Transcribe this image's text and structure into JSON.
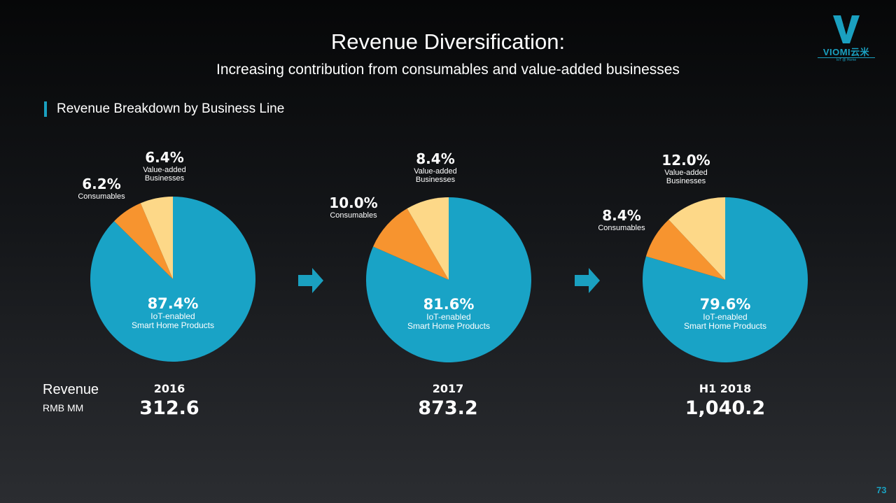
{
  "slide": {
    "title": "Revenue Diversification:",
    "subtitle": "Increasing contribution from consumables and value-added businesses",
    "section_title": "Revenue Breakdown by Business Line",
    "revenue_label": "Revenue",
    "revenue_unit": "RMB MM",
    "page_number": "73"
  },
  "logo": {
    "wordmark": "VIOMI云米",
    "tagline": "IoT @ Home"
  },
  "colors": {
    "accent": "#1aa0c0",
    "iot": "#19a3c6",
    "consumables": "#f7942f",
    "value_added": "#fdd888"
  },
  "chart_data": [
    {
      "type": "pie",
      "period": "2016",
      "revenue": "312.6",
      "slices": [
        {
          "name": "IoT-enabled Smart Home Products",
          "value": 87.4,
          "label": "87.4%",
          "lines": [
            "IoT-enabled",
            "Smart Home Products"
          ]
        },
        {
          "name": "Consumables",
          "value": 6.2,
          "label": "6.2%",
          "lines": [
            "Consumables"
          ]
        },
        {
          "name": "Value-added Businesses",
          "value": 6.4,
          "label": "6.4%",
          "lines": [
            "Value-added",
            "Businesses"
          ]
        }
      ]
    },
    {
      "type": "pie",
      "period": "2017",
      "revenue": "873.2",
      "slices": [
        {
          "name": "IoT-enabled Smart Home Products",
          "value": 81.6,
          "label": "81.6%",
          "lines": [
            "IoT-enabled",
            "Smart Home Products"
          ]
        },
        {
          "name": "Consumables",
          "value": 10.0,
          "label": "10.0%",
          "lines": [
            "Consumables"
          ]
        },
        {
          "name": "Value-added Businesses",
          "value": 8.4,
          "label": "8.4%",
          "lines": [
            "Value-added",
            "Businesses"
          ]
        }
      ]
    },
    {
      "type": "pie",
      "period": "H1 2018",
      "revenue": "1,040.2",
      "slices": [
        {
          "name": "IoT-enabled Smart Home Products",
          "value": 79.6,
          "label": "79.6%",
          "lines": [
            "IoT-enabled",
            "Smart Home Products"
          ]
        },
        {
          "name": "Consumables",
          "value": 8.4,
          "label": "8.4%",
          "lines": [
            "Consumables"
          ]
        },
        {
          "name": "Value-added Businesses",
          "value": 12.0,
          "label": "12.0%",
          "lines": [
            "Value-added",
            "Businesses"
          ]
        }
      ]
    }
  ]
}
